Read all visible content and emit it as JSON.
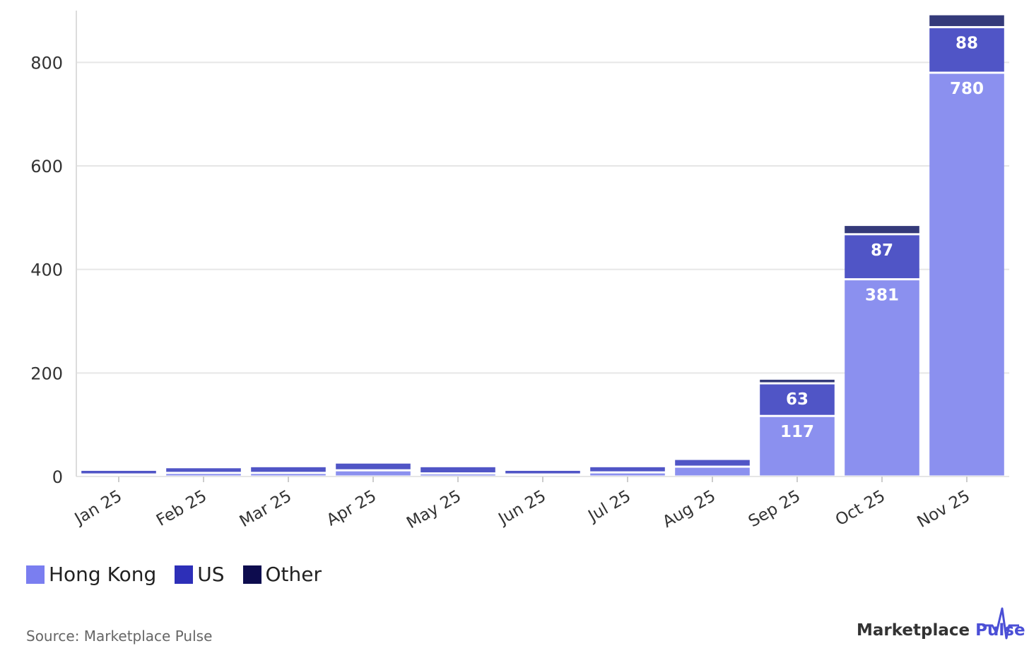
{
  "chart_data": {
    "type": "bar",
    "stacked": true,
    "categories": [
      "Jan 25",
      "Feb 25",
      "Mar 25",
      "Apr 25",
      "May 25",
      "Jun 25",
      "Jul 25",
      "Aug 25",
      "Sep 25",
      "Oct 25",
      "Nov 25"
    ],
    "series": [
      {
        "name": "Hong Kong",
        "color": "#8b90ef",
        "legend_color": "#7a7ef0",
        "values": [
          4,
          7,
          7,
          12,
          6,
          4,
          8,
          19,
          117,
          381,
          780
        ]
      },
      {
        "name": "US",
        "color": "#5055c6",
        "legend_color": "#2d2fb8",
        "values": [
          9,
          11,
          13,
          15,
          14,
          9,
          12,
          15,
          63,
          87,
          88
        ]
      },
      {
        "name": "Other",
        "color": "#343a7a",
        "legend_color": "#0d0c4e",
        "values": [
          3,
          3,
          4,
          4,
          4,
          3,
          3,
          4,
          9,
          18,
          25
        ]
      }
    ],
    "data_labels": {
      "Hong Kong": [
        null,
        null,
        null,
        null,
        null,
        null,
        null,
        null,
        "117",
        "381",
        "780"
      ],
      "US": [
        null,
        null,
        null,
        null,
        null,
        null,
        null,
        null,
        "63",
        "87",
        "88"
      ]
    },
    "y_ticks": [
      "0",
      "200",
      "400",
      "600",
      "800"
    ],
    "ylim": [
      0,
      900
    ],
    "grid": true,
    "legend_position": "bottom-left",
    "title": "",
    "xlabel": "",
    "ylabel": ""
  },
  "footer": {
    "source": "Source: Marketplace Pulse",
    "brand_part1": "Marketplace",
    "brand_part2": "Pulse",
    "brand_mark": "pulse-line-icon"
  }
}
